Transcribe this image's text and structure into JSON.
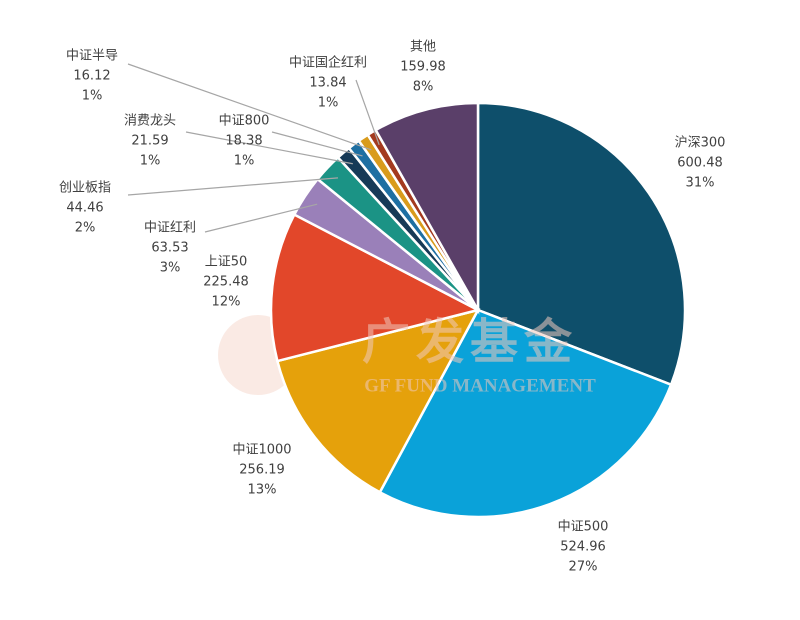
{
  "chart_data": {
    "type": "pie",
    "categories": [
      "沪深300",
      "中证500",
      "中证1000",
      "上证50",
      "中证红利",
      "创业板指",
      "消费龙头",
      "中证800",
      "中证半导",
      "中证国企红利",
      "其他"
    ],
    "values": [
      600.48,
      524.96,
      256.19,
      225.48,
      63.53,
      44.46,
      21.59,
      18.38,
      16.12,
      13.84,
      159.98
    ],
    "percent_labels": [
      "31%",
      "27%",
      "13%",
      "12%",
      "3%",
      "2%",
      "1%",
      "1%",
      "1%",
      "1%",
      "8%"
    ],
    "colors": [
      "#0e4f6b",
      "#0aa2d9",
      "#e5a10b",
      "#e2472a",
      "#9a80b9",
      "#1b9385",
      "#163a57",
      "#1e6fa2",
      "#d99b1c",
      "#a43a1f",
      "#5a3f69"
    ],
    "watermark": {
      "cn": "广发基金",
      "en": "GF FUND MANAGEMENT"
    }
  }
}
